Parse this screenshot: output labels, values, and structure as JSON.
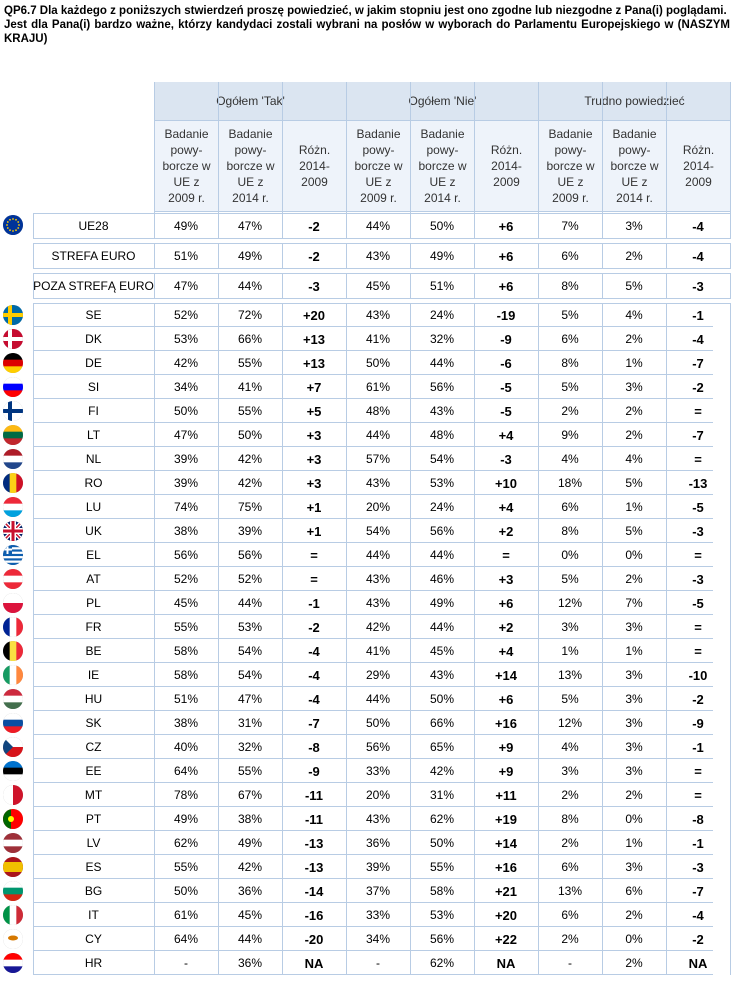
{
  "title": {
    "line1": "QP6.7 Dla każdego z poniższych stwierdzeń proszę powiedzieć, w jakim stopniu jest ono zgodne lub niezgodne z Pana(i) poglądami.",
    "line2": "Jest dla Pana(i) bardzo ważne, którzy kandydaci zostali wybrani na posłów w wyborach do Parlamentu Europejskiego w (NASZYM KRAJU)"
  },
  "groups": [
    "Ogółem 'Tak'",
    "Ogółem 'Nie'",
    "Trudno powiedzieć"
  ],
  "subheaders": [
    "Badanie powy-borcze w UE z 2009 r.",
    "Badanie powy-borcze w UE z 2014 r.",
    "Różn. 2014-2009"
  ],
  "flag_colors": {
    "eu": [
      "#003399",
      "#ffcc00"
    ],
    "SE": [
      "#006aa7",
      "#fecc00"
    ],
    "DK": [
      "#c60c30",
      "#ffffff"
    ],
    "DE": [
      "#000000",
      "#dd0000",
      "#ffce00"
    ],
    "SI": [
      "#ffffff",
      "#0000ff",
      "#ff0000"
    ],
    "FI": [
      "#ffffff",
      "#003580"
    ],
    "LT": [
      "#fdb913",
      "#006a44",
      "#c1272d"
    ],
    "NL": [
      "#ae1c28",
      "#ffffff",
      "#21468b"
    ],
    "RO": [
      "#002b7f",
      "#fcd116",
      "#ce1126"
    ],
    "LU": [
      "#ed2939",
      "#ffffff",
      "#00a1de"
    ],
    "UK": [
      "#012169",
      "#ffffff",
      "#c8102e"
    ],
    "EL": [
      "#0d5eaf",
      "#ffffff"
    ],
    "AT": [
      "#ed2939",
      "#ffffff",
      "#ed2939"
    ],
    "PL": [
      "#ffffff",
      "#dc143c"
    ],
    "FR": [
      "#002395",
      "#ffffff",
      "#ed2939"
    ],
    "BE": [
      "#000000",
      "#fae042",
      "#ed2939"
    ],
    "IE": [
      "#169b62",
      "#ffffff",
      "#ff883e"
    ],
    "HU": [
      "#cd2a3e",
      "#ffffff",
      "#436f4d"
    ],
    "SK": [
      "#ffffff",
      "#0b4ea2",
      "#ee1c25"
    ],
    "CZ": [
      "#ffffff",
      "#d7141a",
      "#11457e"
    ],
    "EE": [
      "#0072ce",
      "#000000",
      "#ffffff"
    ],
    "MT": [
      "#ffffff",
      "#cf142b"
    ],
    "PT": [
      "#006600",
      "#ff0000",
      "#ffff00"
    ],
    "LV": [
      "#9e3039",
      "#ffffff",
      "#9e3039"
    ],
    "ES": [
      "#aa151b",
      "#f1bf00",
      "#aa151b"
    ],
    "BG": [
      "#ffffff",
      "#00966e",
      "#d62612"
    ],
    "IT": [
      "#009246",
      "#ffffff",
      "#ce2b37"
    ],
    "CY": [
      "#ffffff",
      "#d57800"
    ],
    "HR": [
      "#ff0000",
      "#ffffff",
      "#171796"
    ]
  },
  "rows": [
    {
      "label": "UE28",
      "flag": "eu",
      "v": [
        "49%",
        "47%",
        "-2",
        "44%",
        "50%",
        "+6",
        "7%",
        "3%",
        "-4"
      ]
    },
    {
      "label": "STREFA EURO",
      "flag": "",
      "v": [
        "51%",
        "49%",
        "-2",
        "43%",
        "49%",
        "+6",
        "6%",
        "2%",
        "-4"
      ]
    },
    {
      "label": "POZA STREFĄ EURO",
      "flag": "",
      "v": [
        "47%",
        "44%",
        "-3",
        "45%",
        "51%",
        "+6",
        "8%",
        "5%",
        "-3"
      ]
    },
    {
      "label": "SE",
      "flag": "SE",
      "v": [
        "52%",
        "72%",
        "+20",
        "43%",
        "24%",
        "-19",
        "5%",
        "4%",
        "-1"
      ]
    },
    {
      "label": "DK",
      "flag": "DK",
      "v": [
        "53%",
        "66%",
        "+13",
        "41%",
        "32%",
        "-9",
        "6%",
        "2%",
        "-4"
      ]
    },
    {
      "label": "DE",
      "flag": "DE",
      "v": [
        "42%",
        "55%",
        "+13",
        "50%",
        "44%",
        "-6",
        "8%",
        "1%",
        "-7"
      ]
    },
    {
      "label": "SI",
      "flag": "SI",
      "v": [
        "34%",
        "41%",
        "+7",
        "61%",
        "56%",
        "-5",
        "5%",
        "3%",
        "-2"
      ]
    },
    {
      "label": "FI",
      "flag": "FI",
      "v": [
        "50%",
        "55%",
        "+5",
        "48%",
        "43%",
        "-5",
        "2%",
        "2%",
        "="
      ]
    },
    {
      "label": "LT",
      "flag": "LT",
      "v": [
        "47%",
        "50%",
        "+3",
        "44%",
        "48%",
        "+4",
        "9%",
        "2%",
        "-7"
      ]
    },
    {
      "label": "NL",
      "flag": "NL",
      "v": [
        "39%",
        "42%",
        "+3",
        "57%",
        "54%",
        "-3",
        "4%",
        "4%",
        "="
      ]
    },
    {
      "label": "RO",
      "flag": "RO",
      "v": [
        "39%",
        "42%",
        "+3",
        "43%",
        "53%",
        "+10",
        "18%",
        "5%",
        "-13"
      ]
    },
    {
      "label": "LU",
      "flag": "LU",
      "v": [
        "74%",
        "75%",
        "+1",
        "20%",
        "24%",
        "+4",
        "6%",
        "1%",
        "-5"
      ]
    },
    {
      "label": "UK",
      "flag": "UK",
      "v": [
        "38%",
        "39%",
        "+1",
        "54%",
        "56%",
        "+2",
        "8%",
        "5%",
        "-3"
      ]
    },
    {
      "label": "EL",
      "flag": "EL",
      "v": [
        "56%",
        "56%",
        "=",
        "44%",
        "44%",
        "=",
        "0%",
        "0%",
        "="
      ]
    },
    {
      "label": "AT",
      "flag": "AT",
      "v": [
        "52%",
        "52%",
        "=",
        "43%",
        "46%",
        "+3",
        "5%",
        "2%",
        "-3"
      ]
    },
    {
      "label": "PL",
      "flag": "PL",
      "v": [
        "45%",
        "44%",
        "-1",
        "43%",
        "49%",
        "+6",
        "12%",
        "7%",
        "-5"
      ]
    },
    {
      "label": "FR",
      "flag": "FR",
      "v": [
        "55%",
        "53%",
        "-2",
        "42%",
        "44%",
        "+2",
        "3%",
        "3%",
        "="
      ]
    },
    {
      "label": "BE",
      "flag": "BE",
      "v": [
        "58%",
        "54%",
        "-4",
        "41%",
        "45%",
        "+4",
        "1%",
        "1%",
        "="
      ]
    },
    {
      "label": "IE",
      "flag": "IE",
      "v": [
        "58%",
        "54%",
        "-4",
        "29%",
        "43%",
        "+14",
        "13%",
        "3%",
        "-10"
      ]
    },
    {
      "label": "HU",
      "flag": "HU",
      "v": [
        "51%",
        "47%",
        "-4",
        "44%",
        "50%",
        "+6",
        "5%",
        "3%",
        "-2"
      ]
    },
    {
      "label": "SK",
      "flag": "SK",
      "v": [
        "38%",
        "31%",
        "-7",
        "50%",
        "66%",
        "+16",
        "12%",
        "3%",
        "-9"
      ]
    },
    {
      "label": "CZ",
      "flag": "CZ",
      "v": [
        "40%",
        "32%",
        "-8",
        "56%",
        "65%",
        "+9",
        "4%",
        "3%",
        "-1"
      ]
    },
    {
      "label": "EE",
      "flag": "EE",
      "v": [
        "64%",
        "55%",
        "-9",
        "33%",
        "42%",
        "+9",
        "3%",
        "3%",
        "="
      ]
    },
    {
      "label": "MT",
      "flag": "MT",
      "v": [
        "78%",
        "67%",
        "-11",
        "20%",
        "31%",
        "+11",
        "2%",
        "2%",
        "="
      ]
    },
    {
      "label": "PT",
      "flag": "PT",
      "v": [
        "49%",
        "38%",
        "-11",
        "43%",
        "62%",
        "+19",
        "8%",
        "0%",
        "-8"
      ]
    },
    {
      "label": "LV",
      "flag": "LV",
      "v": [
        "62%",
        "49%",
        "-13",
        "36%",
        "50%",
        "+14",
        "2%",
        "1%",
        "-1"
      ]
    },
    {
      "label": "ES",
      "flag": "ES",
      "v": [
        "55%",
        "42%",
        "-13",
        "39%",
        "55%",
        "+16",
        "6%",
        "3%",
        "-3"
      ]
    },
    {
      "label": "BG",
      "flag": "BG",
      "v": [
        "50%",
        "36%",
        "-14",
        "37%",
        "58%",
        "+21",
        "13%",
        "6%",
        "-7"
      ]
    },
    {
      "label": "IT",
      "flag": "IT",
      "v": [
        "61%",
        "45%",
        "-16",
        "33%",
        "53%",
        "+20",
        "6%",
        "2%",
        "-4"
      ]
    },
    {
      "label": "CY",
      "flag": "CY",
      "v": [
        "64%",
        "44%",
        "-20",
        "34%",
        "56%",
        "+22",
        "2%",
        "0%",
        "-2"
      ]
    },
    {
      "label": "HR",
      "flag": "HR",
      "v": [
        "-",
        "36%",
        "NA",
        "-",
        "62%",
        "NA",
        "-",
        "2%",
        "NA"
      ]
    }
  ]
}
